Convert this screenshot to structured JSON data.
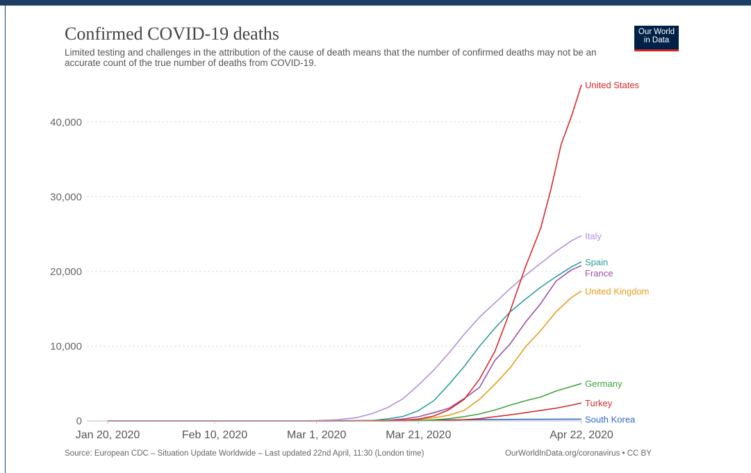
{
  "header": {
    "title": "Confirmed COVID-19 deaths",
    "subtitle": "Limited testing and challenges in the attribution of the cause of death means that the number of confirmed deaths may not be an accurate count of the true number of deaths from COVID-19.",
    "logo_line1": "Our World",
    "logo_line2": "in Data"
  },
  "footer": {
    "source": "Source: European CDC – Situation Update Worldwide – Last updated 22nd April, 11:30 (London time)",
    "license": "OurWorldInData.org/coronavirus • CC BY"
  },
  "colors": {
    "top_bar": "#1d3d63",
    "logo_bg": "#002147",
    "logo_stripe": "#ce261e"
  },
  "chart_data": {
    "type": "line",
    "x_axis": {
      "type": "date",
      "range": [
        "2020-01-20",
        "2020-04-22"
      ],
      "tick_dates": [
        "2020-01-20",
        "2020-02-10",
        "2020-03-01",
        "2020-03-21",
        "2020-04-22"
      ],
      "tick_labels": [
        "Jan 20, 2020",
        "Feb 10, 2020",
        "Mar 1, 2020",
        "Mar 21, 2020",
        "Apr 22, 2020"
      ]
    },
    "y_axis": {
      "range": [
        0,
        45000
      ],
      "ticks": [
        0,
        10000,
        20000,
        30000,
        40000
      ],
      "tick_labels": [
        "0",
        "10,000",
        "20,000",
        "30,000",
        "40,000"
      ]
    },
    "grid": "horizontal dashed",
    "legend": "line-end labels",
    "series": [
      {
        "name": "United States",
        "color": "#d62728",
        "points": [
          [
            "2020-01-20",
            0
          ],
          [
            "2020-03-01",
            0
          ],
          [
            "2020-03-10",
            25
          ],
          [
            "2020-03-18",
            100
          ],
          [
            "2020-03-21",
            250
          ],
          [
            "2020-03-24",
            650
          ],
          [
            "2020-03-27",
            1500
          ],
          [
            "2020-03-30",
            2900
          ],
          [
            "2020-04-02",
            5600
          ],
          [
            "2020-04-05",
            9300
          ],
          [
            "2020-04-08",
            14700
          ],
          [
            "2020-04-11",
            20600
          ],
          [
            "2020-04-14",
            25800
          ],
          [
            "2020-04-16",
            31000
          ],
          [
            "2020-04-18",
            37000
          ],
          [
            "2020-04-20",
            40700
          ],
          [
            "2020-04-22",
            45000
          ]
        ]
      },
      {
        "name": "Italy",
        "color": "#b48ed6",
        "points": [
          [
            "2020-01-20",
            0
          ],
          [
            "2020-02-21",
            0
          ],
          [
            "2020-02-26",
            12
          ],
          [
            "2020-03-01",
            34
          ],
          [
            "2020-03-05",
            150
          ],
          [
            "2020-03-09",
            460
          ],
          [
            "2020-03-12",
            1000
          ],
          [
            "2020-03-15",
            1800
          ],
          [
            "2020-03-18",
            2980
          ],
          [
            "2020-03-21",
            4800
          ],
          [
            "2020-03-24",
            6800
          ],
          [
            "2020-03-27",
            9100
          ],
          [
            "2020-03-30",
            11600
          ],
          [
            "2020-04-02",
            13900
          ],
          [
            "2020-04-05",
            15800
          ],
          [
            "2020-04-08",
            17700
          ],
          [
            "2020-04-11",
            19500
          ],
          [
            "2020-04-14",
            21100
          ],
          [
            "2020-04-17",
            22700
          ],
          [
            "2020-04-20",
            24100
          ],
          [
            "2020-04-22",
            24800
          ]
        ]
      },
      {
        "name": "Spain",
        "color": "#2a9d9d",
        "points": [
          [
            "2020-01-20",
            0
          ],
          [
            "2020-03-03",
            0
          ],
          [
            "2020-03-08",
            10
          ],
          [
            "2020-03-12",
            50
          ],
          [
            "2020-03-15",
            290
          ],
          [
            "2020-03-18",
            600
          ],
          [
            "2020-03-21",
            1380
          ],
          [
            "2020-03-24",
            2700
          ],
          [
            "2020-03-27",
            4900
          ],
          [
            "2020-03-30",
            7300
          ],
          [
            "2020-04-02",
            10000
          ],
          [
            "2020-04-05",
            12400
          ],
          [
            "2020-04-08",
            14600
          ],
          [
            "2020-04-11",
            16300
          ],
          [
            "2020-04-14",
            17900
          ],
          [
            "2020-04-17",
            19300
          ],
          [
            "2020-04-20",
            20600
          ],
          [
            "2020-04-22",
            21300
          ]
        ]
      },
      {
        "name": "France",
        "color": "#9b4fa6",
        "points": [
          [
            "2020-01-20",
            0
          ],
          [
            "2020-03-05",
            0
          ],
          [
            "2020-03-08",
            20
          ],
          [
            "2020-03-12",
            50
          ],
          [
            "2020-03-15",
            90
          ],
          [
            "2020-03-18",
            260
          ],
          [
            "2020-03-21",
            560
          ],
          [
            "2020-03-24",
            1100
          ],
          [
            "2020-03-27",
            1700
          ],
          [
            "2020-03-30",
            3000
          ],
          [
            "2020-04-02",
            4500
          ],
          [
            "2020-04-05",
            8100
          ],
          [
            "2020-04-08",
            10300
          ],
          [
            "2020-04-11",
            13200
          ],
          [
            "2020-04-14",
            15700
          ],
          [
            "2020-04-17",
            18700
          ],
          [
            "2020-04-20",
            20200
          ],
          [
            "2020-04-22",
            20800
          ]
        ]
      },
      {
        "name": "United Kingdom",
        "color": "#e59b1a",
        "points": [
          [
            "2020-01-20",
            0
          ],
          [
            "2020-03-07",
            0
          ],
          [
            "2020-03-12",
            10
          ],
          [
            "2020-03-16",
            50
          ],
          [
            "2020-03-19",
            140
          ],
          [
            "2020-03-21",
            230
          ],
          [
            "2020-03-24",
            420
          ],
          [
            "2020-03-27",
            760
          ],
          [
            "2020-03-30",
            1400
          ],
          [
            "2020-04-02",
            2900
          ],
          [
            "2020-04-05",
            4900
          ],
          [
            "2020-04-08",
            7100
          ],
          [
            "2020-04-11",
            9900
          ],
          [
            "2020-04-14",
            12100
          ],
          [
            "2020-04-17",
            14600
          ],
          [
            "2020-04-20",
            16500
          ],
          [
            "2020-04-22",
            17400
          ]
        ]
      },
      {
        "name": "Germany",
        "color": "#3da13d",
        "points": [
          [
            "2020-01-20",
            0
          ],
          [
            "2020-03-10",
            0
          ],
          [
            "2020-03-15",
            10
          ],
          [
            "2020-03-21",
            70
          ],
          [
            "2020-03-24",
            150
          ],
          [
            "2020-03-27",
            300
          ],
          [
            "2020-03-30",
            580
          ],
          [
            "2020-04-02",
            930
          ],
          [
            "2020-04-05",
            1450
          ],
          [
            "2020-04-08",
            2100
          ],
          [
            "2020-04-11",
            2700
          ],
          [
            "2020-04-14",
            3200
          ],
          [
            "2020-04-17",
            4000
          ],
          [
            "2020-04-20",
            4600
          ],
          [
            "2020-04-22",
            5000
          ]
        ]
      },
      {
        "name": "Turkey",
        "color": "#cf2e2e",
        "points": [
          [
            "2020-01-20",
            0
          ],
          [
            "2020-03-17",
            0
          ],
          [
            "2020-03-21",
            20
          ],
          [
            "2020-03-24",
            50
          ],
          [
            "2020-03-27",
            90
          ],
          [
            "2020-03-30",
            170
          ],
          [
            "2020-04-02",
            300
          ],
          [
            "2020-04-05",
            570
          ],
          [
            "2020-04-08",
            810
          ],
          [
            "2020-04-11",
            1100
          ],
          [
            "2020-04-14",
            1400
          ],
          [
            "2020-04-17",
            1700
          ],
          [
            "2020-04-20",
            2100
          ],
          [
            "2020-04-22",
            2400
          ]
        ]
      },
      {
        "name": "South Korea",
        "color": "#3368c6",
        "points": [
          [
            "2020-01-20",
            0
          ],
          [
            "2020-02-20",
            0
          ],
          [
            "2020-03-01",
            20
          ],
          [
            "2020-03-10",
            50
          ],
          [
            "2020-03-21",
            100
          ],
          [
            "2020-04-01",
            170
          ],
          [
            "2020-04-10",
            210
          ],
          [
            "2020-04-22",
            238
          ]
        ]
      }
    ]
  }
}
